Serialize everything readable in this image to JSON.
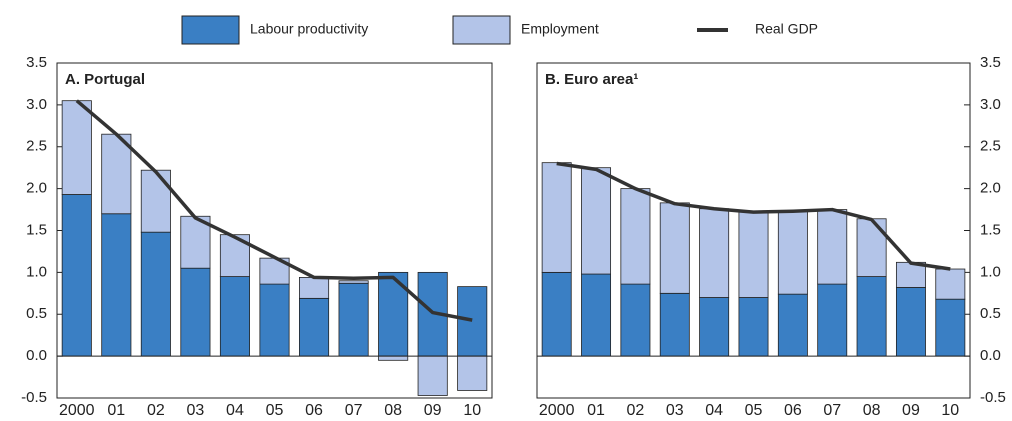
{
  "chart_data": [
    {
      "type": "bar",
      "title": "A. Portugal",
      "y_axis_side": "left",
      "categories": [
        "2000",
        "01",
        "02",
        "03",
        "04",
        "05",
        "06",
        "07",
        "08",
        "09",
        "10"
      ],
      "series": [
        {
          "name": "Labour productivity",
          "color": "#3a7fc4",
          "values": [
            1.93,
            1.7,
            1.48,
            1.05,
            0.95,
            0.86,
            0.69,
            0.87,
            1.0,
            1.0,
            0.83
          ]
        },
        {
          "name": "Employment",
          "color": "#b3c4e8",
          "values": [
            1.12,
            0.95,
            0.74,
            0.62,
            0.5,
            0.31,
            0.25,
            0.03,
            -0.05,
            -0.47,
            -0.41
          ]
        },
        {
          "name": "Real GDP",
          "color": "#333333",
          "type": "line",
          "values": [
            3.05,
            2.65,
            2.2,
            1.65,
            1.42,
            1.18,
            0.94,
            0.93,
            0.94,
            0.52,
            0.43
          ]
        }
      ],
      "ylim": [
        -0.5,
        3.5
      ],
      "yticks": [
        -0.5,
        {
          "value": 0,
          "label": "0.0"
        },
        0.5,
        {
          "value": 1,
          "label": "1.0"
        },
        1.5,
        {
          "value": 2,
          "label": "2.0"
        },
        2.5,
        {
          "value": 3,
          "label": "3.0"
        },
        3.5
      ]
    },
    {
      "type": "bar",
      "title": "B. Euro area¹",
      "y_axis_side": "right",
      "categories": [
        "2000",
        "01",
        "02",
        "03",
        "04",
        "05",
        "06",
        "07",
        "08",
        "09",
        "10"
      ],
      "series": [
        {
          "name": "Labour productivity",
          "color": "#3a7fc4",
          "values": [
            1.0,
            0.98,
            0.86,
            0.75,
            0.7,
            0.7,
            0.74,
            0.86,
            0.95,
            0.82,
            0.68
          ]
        },
        {
          "name": "Employment",
          "color": "#b3c4e8",
          "values": [
            1.31,
            1.27,
            1.14,
            1.08,
            1.06,
            1.02,
            0.99,
            0.89,
            0.69,
            0.3,
            0.36
          ]
        },
        {
          "name": "Real GDP",
          "color": "#333333",
          "type": "line",
          "values": [
            2.3,
            2.23,
            2.0,
            1.82,
            1.76,
            1.72,
            1.73,
            1.75,
            1.63,
            1.11,
            1.04
          ]
        }
      ],
      "ylim": [
        -0.5,
        3.5
      ],
      "yticks": [
        -0.5,
        {
          "value": 0,
          "label": "0.0"
        },
        0.5,
        {
          "value": 1,
          "label": "1.0"
        },
        1.5,
        {
          "value": 2,
          "label": "2.0"
        },
        2.5,
        {
          "value": 3,
          "label": "3.0"
        },
        3.5
      ]
    }
  ]
}
